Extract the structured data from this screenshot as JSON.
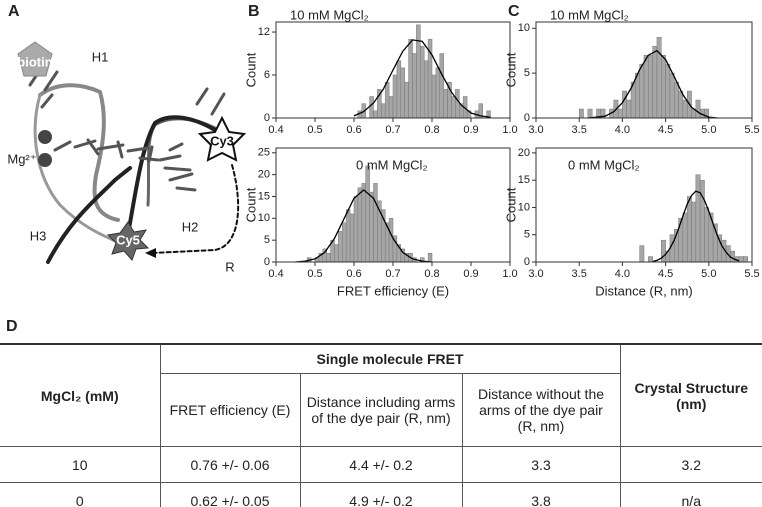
{
  "panel_labels": [
    "A",
    "B",
    "C",
    "D"
  ],
  "diagram": {
    "labels": [
      "biotin",
      "H1",
      "Mg²⁺",
      "H2",
      "H3",
      "Cy3",
      "Cy5",
      "R"
    ]
  },
  "chart_data": [
    {
      "type": "histogram",
      "annotation": "10 mM MgCl₂",
      "ylabel": "Count",
      "color": "#a6a6a6",
      "bins": [
        0.61,
        0.62,
        0.63,
        0.64,
        0.65,
        0.66,
        0.67,
        0.68,
        0.69,
        0.7,
        0.71,
        0.72,
        0.73,
        0.74,
        0.75,
        0.76,
        0.77,
        0.78,
        0.79,
        0.8,
        0.81,
        0.82,
        0.83,
        0.84,
        0.85,
        0.86,
        0.87,
        0.88,
        0.89,
        0.9,
        0.91,
        0.92,
        0.93,
        0.94,
        0.95
      ],
      "values": [
        1,
        2,
        0,
        3,
        1,
        4,
        2,
        5,
        3,
        6,
        8,
        7,
        5,
        11,
        9,
        13,
        10,
        8,
        11,
        6,
        7,
        9,
        4,
        5,
        3,
        4,
        2,
        3,
        1,
        0,
        1,
        2,
        0,
        1
      ],
      "fit": {
        "color": "#000000",
        "x": [
          0.6,
          0.625,
          0.65,
          0.675,
          0.7,
          0.725,
          0.75,
          0.775,
          0.8,
          0.825,
          0.85,
          0.875,
          0.9,
          0.925,
          0.95
        ],
        "y": [
          0.3,
          0.9,
          2.1,
          4.0,
          6.7,
          9.3,
          10.9,
          10.7,
          8.8,
          6.1,
          3.6,
          1.8,
          0.7,
          0.3,
          0.1
        ]
      },
      "xlim": [
        0.4,
        1.0
      ],
      "xticks": [
        0.4,
        0.5,
        0.6,
        0.7,
        0.8,
        0.9,
        {
          "value": 1.0,
          "label": "1.0"
        }
      ],
      "ylim": [
        0,
        13.4
      ],
      "yticks": [
        0,
        6,
        12
      ]
    },
    {
      "type": "histogram",
      "annotation": "0 mM MgCl₂",
      "ylabel": "Count",
      "xlabel": "FRET efficiency (E)",
      "color": "#a6a6a6",
      "bins": [
        0.48,
        0.49,
        0.5,
        0.51,
        0.52,
        0.53,
        0.54,
        0.55,
        0.56,
        0.57,
        0.58,
        0.59,
        0.6,
        0.61,
        0.62,
        0.63,
        0.64,
        0.65,
        0.66,
        0.67,
        0.68,
        0.69,
        0.7,
        0.71,
        0.72,
        0.73,
        0.74,
        0.75,
        0.76,
        0.77,
        0.78,
        0.79,
        0.8
      ],
      "values": [
        1,
        0,
        1,
        2,
        3,
        2,
        5,
        4,
        7,
        9,
        12,
        11,
        15,
        17,
        18,
        22,
        16,
        18,
        14,
        12,
        9,
        10,
        6,
        4,
        3,
        2,
        2,
        1,
        0,
        1,
        0,
        2
      ],
      "fit": {
        "color": "#000000",
        "x": [
          0.45,
          0.475,
          0.5,
          0.525,
          0.55,
          0.575,
          0.6,
          0.625,
          0.65,
          0.675,
          0.7,
          0.725,
          0.75,
          0.775,
          0.8
        ],
        "y": [
          0.0,
          0.2,
          0.7,
          2.2,
          5.4,
          10.0,
          14.6,
          16.5,
          14.6,
          10.0,
          5.4,
          2.2,
          0.7,
          0.2,
          0.0
        ]
      },
      "xlim": [
        0.4,
        1.0
      ],
      "xticks": [
        0.4,
        0.5,
        0.6,
        0.7,
        0.8,
        0.9,
        {
          "value": 1.0,
          "label": "1.0"
        }
      ],
      "ylim": [
        0,
        26.1
      ],
      "yticks": [
        0,
        5,
        10,
        15,
        20,
        25
      ]
    },
    {
      "type": "histogram",
      "annotation": "10 mM MgCl₂",
      "ylabel": "Count",
      "color": "#a6a6a6",
      "bins": [
        3.5,
        3.55,
        3.6,
        3.65,
        3.7,
        3.75,
        3.8,
        3.85,
        3.9,
        3.95,
        4.0,
        4.05,
        4.1,
        4.15,
        4.2,
        4.25,
        4.3,
        4.35,
        4.4,
        4.45,
        4.5,
        4.55,
        4.6,
        4.65,
        4.7,
        4.75,
        4.8,
        4.85,
        4.9,
        4.95,
        5.0
      ],
      "values": [
        1,
        0,
        1,
        0,
        1,
        1,
        0,
        1,
        2,
        1,
        3,
        2,
        4,
        5,
        6,
        7,
        7,
        8,
        9,
        7,
        6,
        5,
        4,
        3,
        2,
        3,
        1,
        2,
        1,
        1
      ],
      "fit": {
        "color": "#000000",
        "x": [
          3.6,
          3.7,
          3.8,
          3.9,
          4.0,
          4.1,
          4.2,
          4.3,
          4.4,
          4.5,
          4.6,
          4.7,
          4.8,
          4.9,
          5.0,
          5.1
        ],
        "y": [
          0.0,
          0.1,
          0.2,
          0.7,
          1.7,
          3.3,
          5.4,
          7.0,
          7.5,
          6.5,
          4.6,
          2.6,
          1.2,
          0.5,
          0.1,
          0.0
        ]
      },
      "xlim": [
        3.0,
        5.5
      ],
      "xticks": [
        {
          "value": 3.0,
          "label": "3.0"
        },
        3.5,
        {
          "value": 4.0,
          "label": "4.0"
        },
        4.5,
        {
          "value": 5.0,
          "label": "5.0"
        },
        5.5
      ],
      "ylim": [
        0,
        10.7
      ],
      "yticks": [
        0,
        5,
        10
      ]
    },
    {
      "type": "histogram",
      "annotation": "0 mM MgCl₂",
      "ylabel": "Count",
      "xlabel": "Distance (R, nm)",
      "color": "#a6a6a6",
      "bins": [
        4.2,
        4.25,
        4.3,
        4.35,
        4.4,
        4.45,
        4.5,
        4.55,
        4.6,
        4.65,
        4.7,
        4.75,
        4.8,
        4.85,
        4.9,
        4.95,
        5.0,
        5.05,
        5.1,
        5.15,
        5.2,
        5.25,
        5.3,
        5.35,
        5.4,
        5.45
      ],
      "values": [
        3,
        0,
        1,
        0,
        0,
        4,
        2,
        5,
        6,
        8,
        9,
        12,
        11,
        16,
        15,
        10,
        9,
        7,
        5,
        4,
        3,
        2,
        1,
        1,
        1
      ],
      "fit": {
        "color": "#000000",
        "x": [
          4.35,
          4.4,
          4.45,
          4.5,
          4.55,
          4.6,
          4.65,
          4.7,
          4.75,
          4.8,
          4.85,
          4.9,
          4.95,
          5.0,
          5.05,
          5.1,
          5.15,
          5.2,
          5.25,
          5.3,
          5.35
        ],
        "y": [
          0.1,
          0.3,
          0.7,
          1.4,
          2.5,
          4.0,
          6.1,
          8.4,
          10.6,
          12.2,
          13.0,
          12.7,
          11.3,
          9.3,
          7.0,
          4.8,
          3.0,
          1.8,
          0.9,
          0.5,
          0.2
        ]
      },
      "xlim": [
        3.0,
        5.5
      ],
      "xticks": [
        {
          "value": 3.0,
          "label": "3.0"
        },
        3.5,
        {
          "value": 4.0,
          "label": "4.0"
        },
        4.5,
        {
          "value": 5.0,
          "label": "5.0"
        },
        5.5
      ],
      "ylim": [
        0,
        20.9
      ],
      "yticks": [
        0,
        5,
        10,
        15,
        20
      ]
    }
  ],
  "table": {
    "header": {
      "mgcl2": "MgCl₂ (mM)",
      "group": "Single molecule FRET",
      "columns": [
        "FRET efficiency (E)",
        "Distance including arms of the dye pair (R, nm)",
        "Distance without the  arms of the dye pair (R, nm)"
      ],
      "crystal": "Crystal Structure (nm)"
    },
    "rows": [
      [
        "10",
        "0.76 +/- 0.06",
        "4.4 +/- 0.2",
        "3.3",
        "3.2"
      ],
      [
        "0",
        "0.62 +/- 0.05",
        "4.9 +/- 0.2",
        "3.8",
        "n/a"
      ]
    ]
  }
}
